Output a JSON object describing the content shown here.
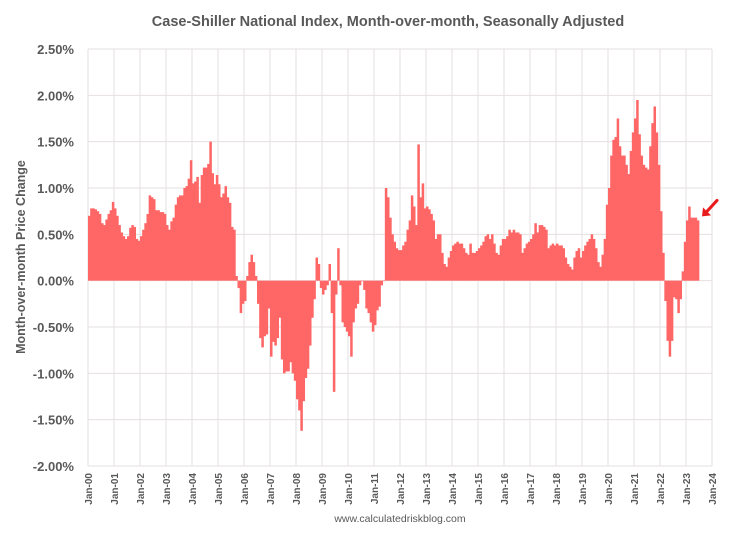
{
  "chart_data": {
    "type": "bar",
    "title": "Case-Shiller National Index, Month-over-month, Seasonally Adjusted",
    "xlabel": "",
    "ylabel": "Month-over-month Price Change",
    "footer": "www.calculatedriskblog.com",
    "bar_color": "#ff6666",
    "annotation_color": "#e81c1c",
    "annotation": "arrow pointing to latest value",
    "ylim": [
      -2.0,
      2.5
    ],
    "ytick_step": 0.5,
    "yticks": [
      "2.50%",
      "2.00%",
      "1.50%",
      "1.00%",
      "0.50%",
      "0.00%",
      "-0.50%",
      "-1.00%",
      "-1.50%",
      "-2.00%"
    ],
    "xticks": [
      "Jan-00",
      "Jan-01",
      "Jan-02",
      "Jan-03",
      "Jan-04",
      "Jan-05",
      "Jan-06",
      "Jan-07",
      "Jan-08",
      "Jan-09",
      "Jan-10",
      "Jan-11",
      "Jan-12",
      "Jan-13",
      "Jan-14",
      "Jan-15",
      "Jan-16",
      "Jan-17",
      "Jan-18",
      "Jan-19",
      "Jan-20",
      "Jan-21",
      "Jan-22",
      "Jan-23",
      "Jan-24"
    ],
    "x_start": "Jan-2000",
    "x_range_months": 288,
    "grid": true,
    "legend": "none",
    "series": [
      {
        "name": "Month-over-month Price Change (%)",
        "frequency": "monthly",
        "start": "2000-01",
        "values": [
          0.7,
          0.78,
          0.78,
          0.77,
          0.75,
          0.72,
          0.62,
          0.6,
          0.66,
          0.72,
          0.76,
          0.85,
          0.78,
          0.7,
          0.6,
          0.52,
          0.48,
          0.45,
          0.48,
          0.57,
          0.6,
          0.58,
          0.45,
          0.43,
          0.48,
          0.55,
          0.62,
          0.72,
          0.92,
          0.9,
          0.88,
          0.76,
          0.76,
          0.74,
          0.74,
          0.72,
          0.6,
          0.55,
          0.64,
          0.68,
          0.82,
          0.9,
          0.92,
          0.92,
          1.0,
          1.02,
          1.1,
          1.3,
          1.05,
          1.07,
          1.12,
          0.84,
          1.14,
          1.22,
          1.22,
          1.26,
          1.5,
          1.16,
          1.04,
          1.14,
          1.04,
          0.9,
          0.94,
          1.02,
          0.9,
          0.84,
          0.58,
          0.55,
          0.05,
          -0.08,
          -0.35,
          -0.25,
          -0.22,
          0.05,
          0.2,
          0.28,
          0.2,
          0.05,
          -0.25,
          -0.62,
          -0.72,
          -0.6,
          -0.58,
          -0.3,
          -0.82,
          -0.66,
          -0.7,
          -0.62,
          -0.4,
          -0.85,
          -1.0,
          -0.98,
          -0.98,
          -0.88,
          -1.0,
          -1.08,
          -1.28,
          -1.4,
          -1.62,
          -1.3,
          -1.05,
          -0.95,
          -0.7,
          -0.4,
          -0.2,
          0.25,
          0.18,
          -0.08,
          -0.15,
          -0.1,
          -0.05,
          0.18,
          -0.35,
          -1.2,
          -0.15,
          0.35,
          -0.05,
          -0.45,
          -0.5,
          -0.55,
          -0.6,
          -0.82,
          -0.45,
          -0.3,
          -0.25,
          -0.05,
          0.0,
          -0.1,
          -0.3,
          -0.35,
          -0.45,
          -0.55,
          -0.48,
          -0.32,
          -0.28,
          -0.05,
          0.0,
          1.0,
          0.9,
          0.68,
          0.5,
          0.42,
          0.35,
          0.33,
          0.33,
          0.38,
          0.42,
          0.55,
          0.65,
          0.92,
          0.8,
          0.6,
          1.47,
          0.9,
          1.05,
          0.78,
          0.8,
          0.77,
          0.72,
          0.65,
          0.45,
          0.5,
          0.5,
          0.3,
          0.18,
          0.15,
          0.25,
          0.32,
          0.38,
          0.4,
          0.42,
          0.4,
          0.4,
          0.35,
          0.3,
          0.28,
          0.4,
          0.3,
          0.3,
          0.32,
          0.35,
          0.38,
          0.42,
          0.48,
          0.5,
          0.45,
          0.5,
          0.4,
          0.3,
          0.28,
          0.38,
          0.45,
          0.45,
          0.48,
          0.55,
          0.52,
          0.55,
          0.52,
          0.52,
          0.5,
          0.3,
          0.35,
          0.4,
          0.42,
          0.45,
          0.5,
          0.62,
          0.52,
          0.6,
          0.6,
          0.58,
          0.55,
          0.35,
          0.38,
          0.4,
          0.38,
          0.4,
          0.38,
          0.38,
          0.35,
          0.25,
          0.18,
          0.15,
          0.12,
          0.25,
          0.32,
          0.35,
          0.25,
          0.32,
          0.38,
          0.42,
          0.45,
          0.5,
          0.45,
          0.35,
          0.2,
          0.15,
          0.28,
          0.45,
          0.82,
          1.0,
          1.35,
          1.52,
          1.55,
          1.75,
          1.45,
          1.35,
          1.35,
          1.25,
          1.15,
          1.4,
          1.6,
          1.75,
          1.95,
          1.58,
          1.35,
          1.25,
          1.22,
          1.2,
          1.45,
          1.7,
          1.88,
          1.6,
          1.25,
          0.75,
          0.3,
          -0.22,
          -0.65,
          -0.82,
          -0.65,
          -0.18,
          -0.2,
          -0.35,
          -0.2,
          0.1,
          0.42,
          0.65,
          0.8,
          0.68,
          0.68,
          0.68,
          0.65
        ]
      }
    ]
  }
}
